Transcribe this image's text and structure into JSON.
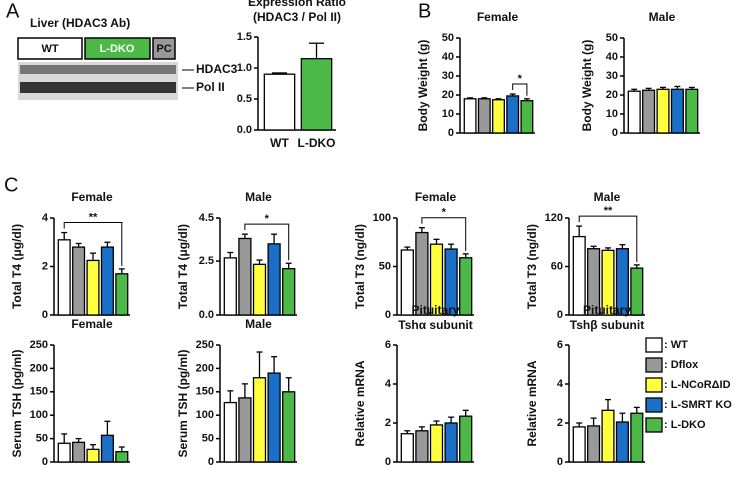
{
  "panel_labels": [
    "A",
    "B",
    "C"
  ],
  "blot": {
    "title": "Liver (HDAC3 Ab)",
    "lanes": [
      "WT",
      "L-DKO",
      "PC"
    ],
    "bands": [
      "HDAC3",
      "Pol II"
    ]
  },
  "legend": [
    {
      "label": ": WT",
      "color": "#ffffff"
    },
    {
      "label": ": Dflox",
      "color": "#999999"
    },
    {
      "label": ": L-NCoRΔID",
      "color": "#ffff40"
    },
    {
      "label": ": L-SMRT KO",
      "color": "#1b6fc6"
    },
    {
      "label": ": L-DKO",
      "color": "#4cb848"
    }
  ],
  "chart_data": [
    {
      "type": "bar",
      "title": "Expression Ratio",
      "subtitle": "(HDAC3 / Pol II)",
      "categories": [
        "WT",
        "L-DKO"
      ],
      "values": [
        0.9,
        1.15
      ],
      "errors": [
        0.02,
        0.25
      ],
      "colors": [
        "#ffffff",
        "#4cb848"
      ],
      "ylim": [
        0,
        1.5
      ],
      "yticks": [
        {
          "value": 0,
          "label": "0.0"
        },
        0.5,
        {
          "value": 1,
          "label": "1.0"
        },
        1.5
      ]
    },
    {
      "type": "bar",
      "title": "Female",
      "ylabel": "Body Weight (g)",
      "values": [
        18,
        18,
        17.5,
        19.5,
        17
      ],
      "errors": [
        0.5,
        0.5,
        0.5,
        1,
        1
      ],
      "colors": [
        "#ffffff",
        "#999999",
        "#ffff40",
        "#1b6fc6",
        "#4cb848"
      ],
      "ylim": [
        0,
        50
      ],
      "yticks": [
        0,
        10,
        20,
        30,
        40,
        50
      ],
      "annotations": [
        {
          "text": "*",
          "between": [
            3,
            4
          ]
        }
      ]
    },
    {
      "type": "bar",
      "title": "Male",
      "ylabel": "Body Weight (g)",
      "values": [
        22,
        22.5,
        23,
        23,
        23
      ],
      "errors": [
        1,
        1,
        1,
        1.5,
        1
      ],
      "colors": [
        "#ffffff",
        "#999999",
        "#ffff40",
        "#1b6fc6",
        "#4cb848"
      ],
      "ylim": [
        0,
        50
      ],
      "yticks": [
        0,
        10,
        20,
        30,
        40,
        50
      ]
    },
    {
      "type": "bar",
      "title": "Female",
      "ylabel": "Total T4 (μg/dl)",
      "values": [
        3.1,
        2.8,
        2.25,
        2.8,
        1.7
      ],
      "errors": [
        0.3,
        0.15,
        0.3,
        0.2,
        0.2
      ],
      "colors": [
        "#ffffff",
        "#999999",
        "#ffff40",
        "#1b6fc6",
        "#4cb848"
      ],
      "ylim": [
        0,
        4
      ],
      "yticks": [
        0,
        2,
        4
      ],
      "annotations": [
        {
          "text": "**",
          "between": [
            0,
            4
          ]
        }
      ]
    },
    {
      "type": "bar",
      "title": "Male",
      "ylabel": "Total T4 (μg/dl)",
      "values": [
        2.65,
        3.55,
        2.35,
        3.3,
        2.15
      ],
      "errors": [
        0.25,
        0.2,
        0.2,
        0.45,
        0.25
      ],
      "colors": [
        "#ffffff",
        "#999999",
        "#ffff40",
        "#1b6fc6",
        "#4cb848"
      ],
      "ylim": [
        0,
        4.5
      ],
      "yticks": [
        {
          "value": 0,
          "label": "0.0"
        },
        2.5,
        4.5
      ],
      "annotations": [
        {
          "text": "*",
          "between": [
            1,
            4
          ]
        }
      ]
    },
    {
      "type": "bar",
      "title": "Female",
      "ylabel": "Total T3 (ng/dl)",
      "values": [
        67,
        85,
        73,
        68,
        59
      ],
      "errors": [
        3,
        5,
        5,
        5,
        4
      ],
      "colors": [
        "#ffffff",
        "#999999",
        "#ffff40",
        "#1b6fc6",
        "#4cb848"
      ],
      "ylim": [
        0,
        100
      ],
      "yticks": [
        0,
        50,
        100
      ],
      "annotations": [
        {
          "text": "*",
          "between": [
            1,
            4
          ]
        }
      ]
    },
    {
      "type": "bar",
      "title": "Male",
      "ylabel": "Total T3 (ng/dl)",
      "values": [
        97,
        82,
        80,
        82,
        58
      ],
      "errors": [
        13,
        3,
        3,
        5,
        4
      ],
      "colors": [
        "#ffffff",
        "#999999",
        "#ffff40",
        "#1b6fc6",
        "#4cb848"
      ],
      "ylim": [
        0,
        120
      ],
      "yticks": [
        0,
        60,
        120
      ],
      "annotations": [
        {
          "text": "**",
          "between": [
            0,
            4
          ]
        }
      ]
    },
    {
      "type": "bar",
      "title": "Female",
      "ylabel": "Serum TSH (pg/ml)",
      "values": [
        40,
        42,
        27,
        57,
        22
      ],
      "errors": [
        20,
        8,
        10,
        30,
        10
      ],
      "colors": [
        "#ffffff",
        "#999999",
        "#ffff40",
        "#1b6fc6",
        "#4cb848"
      ],
      "ylim": [
        0,
        250
      ],
      "yticks": [
        0,
        50,
        100,
        150,
        200,
        250
      ]
    },
    {
      "type": "bar",
      "title": "Male",
      "ylabel": "Serum TSH (pg/ml)",
      "values": [
        127,
        137,
        180,
        190,
        150
      ],
      "errors": [
        25,
        30,
        55,
        35,
        30
      ],
      "colors": [
        "#ffffff",
        "#999999",
        "#ffff40",
        "#1b6fc6",
        "#4cb848"
      ],
      "ylim": [
        0,
        250
      ],
      "yticks": [
        0,
        50,
        100,
        150,
        200,
        250
      ]
    },
    {
      "type": "bar",
      "title": "Pituitary",
      "subtitle": "Tshα  subunit",
      "ylabel": "Relative mRNA",
      "values": [
        1.45,
        1.6,
        1.9,
        2.0,
        2.35
      ],
      "errors": [
        0.15,
        0.2,
        0.2,
        0.3,
        0.3
      ],
      "colors": [
        "#ffffff",
        "#999999",
        "#ffff40",
        "#1b6fc6",
        "#4cb848"
      ],
      "ylim": [
        0,
        6
      ],
      "yticks": [
        0,
        2,
        4,
        6
      ]
    },
    {
      "type": "bar",
      "title": "Pituitary",
      "subtitle": "Tshβ  subunit",
      "ylabel": "Relative mRNA",
      "values": [
        1.8,
        1.85,
        2.65,
        2.05,
        2.5
      ],
      "errors": [
        0.2,
        0.4,
        0.55,
        0.45,
        0.3
      ],
      "colors": [
        "#ffffff",
        "#999999",
        "#ffff40",
        "#1b6fc6",
        "#4cb848"
      ],
      "ylim": [
        0,
        6
      ],
      "yticks": [
        0,
        2,
        4,
        6
      ]
    }
  ]
}
